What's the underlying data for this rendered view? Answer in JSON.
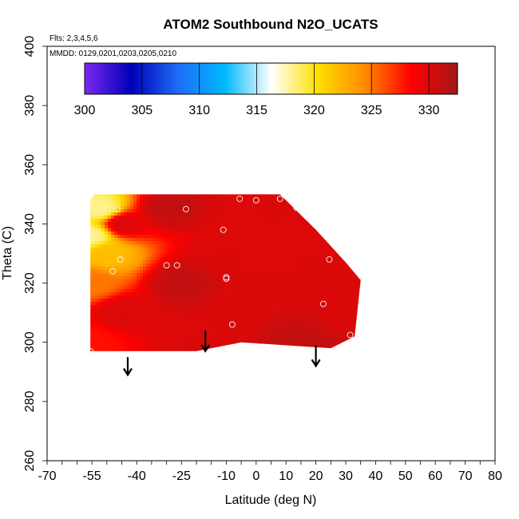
{
  "chart_data": {
    "type": "heatmap",
    "title": "ATOM2 Southbound N2O_UCATS",
    "annotations": {
      "flights": "Flts: 2,3,4,5,6",
      "dates": "MMDD: 0129,0201,0203,0205,0210"
    },
    "xlabel": "Latitude (deg N)",
    "ylabel": "Theta (C)",
    "xlim": [
      -70,
      80
    ],
    "ylim": [
      260,
      400
    ],
    "x_ticks": [
      -70,
      -55,
      -40,
      -25,
      -10,
      0,
      10,
      20,
      30,
      40,
      50,
      60,
      70,
      80
    ],
    "y_ticks": [
      260,
      280,
      300,
      320,
      340,
      360,
      380,
      400
    ],
    "colorbar": {
      "ticks": [
        300,
        305,
        310,
        315,
        320,
        325,
        330
      ],
      "min": 300,
      "max": 332.5,
      "placement": "top",
      "colors": [
        "#7a28f0",
        "#0000b8",
        "#1e6cf5",
        "#00b8ff",
        "#ffffff",
        "#ffe000",
        "#ff8c00",
        "#ff0000",
        "#a01818"
      ]
    },
    "region": [
      [
        -55.5,
        348
      ],
      [
        -54,
        350
      ],
      [
        8,
        350
      ],
      [
        12,
        346
      ],
      [
        20,
        338
      ],
      [
        30,
        327
      ],
      [
        35,
        321
      ],
      [
        33,
        302
      ],
      [
        25,
        298
      ],
      [
        -5,
        300
      ],
      [
        -20,
        297
      ],
      [
        -55.5,
        297
      ]
    ],
    "field_points": [
      {
        "x": -55,
        "y": 336,
        "v": 318
      },
      {
        "x": -55,
        "y": 320,
        "v": 325
      },
      {
        "x": -55,
        "y": 300,
        "v": 328
      },
      {
        "x": -52,
        "y": 345,
        "v": 318
      },
      {
        "x": -50,
        "y": 330,
        "v": 322
      },
      {
        "x": -45,
        "y": 340,
        "v": 330
      },
      {
        "x": -45,
        "y": 310,
        "v": 330
      },
      {
        "x": -30,
        "y": 345,
        "v": 331
      },
      {
        "x": -25,
        "y": 320,
        "v": 331
      },
      {
        "x": -20,
        "y": 300,
        "v": 330
      },
      {
        "x": -10,
        "y": 330,
        "v": 330
      },
      {
        "x": -8,
        "y": 310,
        "v": 330
      },
      {
        "x": 5,
        "y": 345,
        "v": 330
      },
      {
        "x": 5,
        "y": 320,
        "v": 330
      },
      {
        "x": 15,
        "y": 300,
        "v": 331
      },
      {
        "x": 20,
        "y": 325,
        "v": 330
      },
      {
        "x": 30,
        "y": 310,
        "v": 330
      },
      {
        "x": 25,
        "y": 345,
        "v": 330
      }
    ],
    "samples": [
      {
        "x": -46.5,
        "y": 345
      },
      {
        "x": -48,
        "y": 324
      },
      {
        "x": -45.5,
        "y": 328
      },
      {
        "x": -30,
        "y": 326
      },
      {
        "x": -26.5,
        "y": 326
      },
      {
        "x": -23.5,
        "y": 345
      },
      {
        "x": -11,
        "y": 338
      },
      {
        "x": -10,
        "y": 321.5
      },
      {
        "x": -10,
        "y": 322
      },
      {
        "x": -5.5,
        "y": 348.5
      },
      {
        "x": 0,
        "y": 348
      },
      {
        "x": 8,
        "y": 348.5
      },
      {
        "x": 13.5,
        "y": 345.5
      },
      {
        "x": -8,
        "y": 306
      },
      {
        "x": 22.5,
        "y": 313
      },
      {
        "x": 24.5,
        "y": 328
      },
      {
        "x": 31.5,
        "y": 302.5
      },
      {
        "x": -55.5,
        "y": 297
      }
    ],
    "arrows": [
      {
        "x": -43,
        "y_top": 295,
        "y_bottom": 289
      },
      {
        "x": -17,
        "y_top": 304,
        "y_bottom": 297
      },
      {
        "x": 20,
        "y_top": 299,
        "y_bottom": 292
      }
    ]
  }
}
